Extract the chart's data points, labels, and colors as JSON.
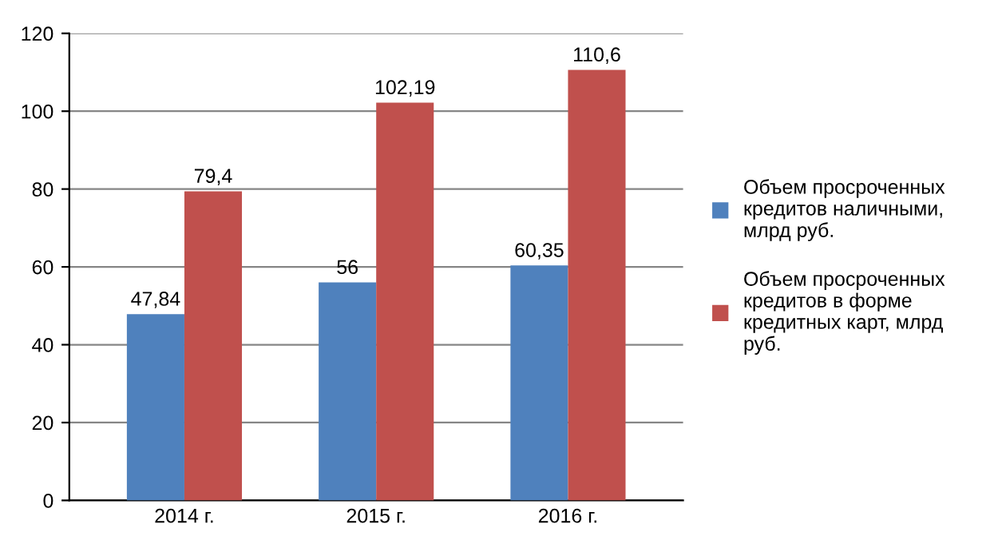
{
  "chart_data": {
    "type": "bar",
    "categories": [
      "2014 г.",
      "2015 г.",
      "2016 г."
    ],
    "series": [
      {
        "name": "Объем просроченных кредитов наличными, млрд руб.",
        "color": "#4f81bd",
        "values": [
          47.84,
          56,
          60.35
        ],
        "value_labels": [
          "47,84",
          "56",
          "60,35"
        ]
      },
      {
        "name": "Объем просроченных кредитов в форме кредитных карт, млрд руб.",
        "color": "#c0504d",
        "values": [
          79.4,
          102.19,
          110.6
        ],
        "value_labels": [
          "79,4",
          "102,19",
          "110,6"
        ]
      }
    ],
    "ylim": [
      0,
      120
    ],
    "yticks": [
      0,
      20,
      40,
      60,
      80,
      100,
      120
    ],
    "grid": "y",
    "legend": "right"
  }
}
